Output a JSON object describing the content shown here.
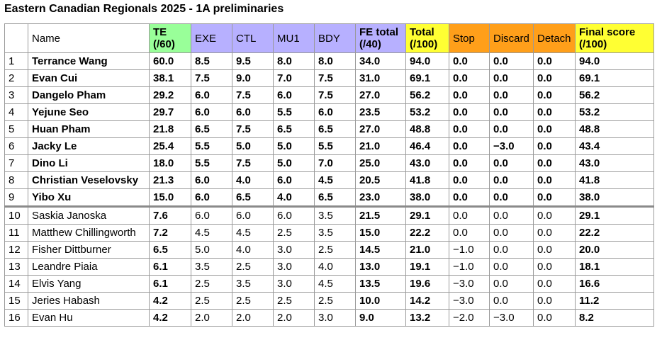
{
  "title": "Eastern Canadian Regionals 2025 - 1A preliminaries",
  "headers": {
    "rank": "",
    "name": "Name",
    "te": "TE (/60)",
    "exe": "EXE",
    "ctl": "CTL",
    "mu1": "MU1",
    "bdy": "BDY",
    "fe_total": "FE total (/40)",
    "total": "Total (/100)",
    "stop": "Stop",
    "discard": "Discard",
    "detach": "Detach",
    "final": "Final score (/100)"
  },
  "header_colors": {
    "te": "#99ff99",
    "judges": "#b7b0ff",
    "totals": "#ffff33",
    "deductions": "#ff9f1a"
  },
  "rows": [
    {
      "rank": "1",
      "name": "Terrance Wang",
      "te": "60.0",
      "exe": "8.5",
      "ctl": "9.5",
      "mu1": "8.0",
      "bdy": "8.0",
      "fe": "34.0",
      "total": "94.0",
      "stop": "0.0",
      "discard": "0.0",
      "detach": "0.0",
      "final": "94.0"
    },
    {
      "rank": "2",
      "name": "Evan Cui",
      "te": "38.1",
      "exe": "7.5",
      "ctl": "9.0",
      "mu1": "7.0",
      "bdy": "7.5",
      "fe": "31.0",
      "total": "69.1",
      "stop": "0.0",
      "discard": "0.0",
      "detach": "0.0",
      "final": "69.1"
    },
    {
      "rank": "3",
      "name": "Dangelo Pham",
      "te": "29.2",
      "exe": "6.0",
      "ctl": "7.5",
      "mu1": "6.0",
      "bdy": "7.5",
      "fe": "27.0",
      "total": "56.2",
      "stop": "0.0",
      "discard": "0.0",
      "detach": "0.0",
      "final": "56.2"
    },
    {
      "rank": "4",
      "name": "Yejune Seo",
      "te": "29.7",
      "exe": "6.0",
      "ctl": "6.0",
      "mu1": "5.5",
      "bdy": "6.0",
      "fe": "23.5",
      "total": "53.2",
      "stop": "0.0",
      "discard": "0.0",
      "detach": "0.0",
      "final": "53.2"
    },
    {
      "rank": "5",
      "name": "Huan Pham",
      "te": "21.8",
      "exe": "6.5",
      "ctl": "7.5",
      "mu1": "6.5",
      "bdy": "6.5",
      "fe": "27.0",
      "total": "48.8",
      "stop": "0.0",
      "discard": "0.0",
      "detach": "0.0",
      "final": "48.8"
    },
    {
      "rank": "6",
      "name": "Jacky Le",
      "te": "25.4",
      "exe": "5.5",
      "ctl": "5.0",
      "mu1": "5.0",
      "bdy": "5.5",
      "fe": "21.0",
      "total": "46.4",
      "stop": "0.0",
      "discard": "−3.0",
      "detach": "0.0",
      "final": "43.4"
    },
    {
      "rank": "7",
      "name": "Dino Li",
      "te": "18.0",
      "exe": "5.5",
      "ctl": "7.5",
      "mu1": "5.0",
      "bdy": "7.0",
      "fe": "25.0",
      "total": "43.0",
      "stop": "0.0",
      "discard": "0.0",
      "detach": "0.0",
      "final": "43.0"
    },
    {
      "rank": "8",
      "name": "Christian Veselovsky",
      "te": "21.3",
      "exe": "6.0",
      "ctl": "4.0",
      "mu1": "6.0",
      "bdy": "4.5",
      "fe": "20.5",
      "total": "41.8",
      "stop": "0.0",
      "discard": "0.0",
      "detach": "0.0",
      "final": "41.8"
    },
    {
      "rank": "9",
      "name": "Yibo Xu",
      "te": "15.0",
      "exe": "6.0",
      "ctl": "6.5",
      "mu1": "4.0",
      "bdy": "6.5",
      "fe": "23.0",
      "total": "38.0",
      "stop": "0.0",
      "discard": "0.0",
      "detach": "0.0",
      "final": "38.0"
    },
    {
      "rank": "10",
      "name": "Saskia Janoska",
      "te": "7.6",
      "exe": "6.0",
      "ctl": "6.0",
      "mu1": "6.0",
      "bdy": "3.5",
      "fe": "21.5",
      "total": "29.1",
      "stop": "0.0",
      "discard": "0.0",
      "detach": "0.0",
      "final": "29.1"
    },
    {
      "rank": "11",
      "name": "Matthew Chillingworth",
      "te": "7.2",
      "exe": "4.5",
      "ctl": "4.5",
      "mu1": "2.5",
      "bdy": "3.5",
      "fe": "15.0",
      "total": "22.2",
      "stop": "0.0",
      "discard": "0.0",
      "detach": "0.0",
      "final": "22.2"
    },
    {
      "rank": "12",
      "name": "Fisher Dittburner",
      "te": "6.5",
      "exe": "5.0",
      "ctl": "4.0",
      "mu1": "3.0",
      "bdy": "2.5",
      "fe": "14.5",
      "total": "21.0",
      "stop": "−1.0",
      "discard": "0.0",
      "detach": "0.0",
      "final": "20.0"
    },
    {
      "rank": "13",
      "name": "Leandre Piaia",
      "te": "6.1",
      "exe": "3.5",
      "ctl": "2.5",
      "mu1": "3.0",
      "bdy": "4.0",
      "fe": "13.0",
      "total": "19.1",
      "stop": "−1.0",
      "discard": "0.0",
      "detach": "0.0",
      "final": "18.1"
    },
    {
      "rank": "14",
      "name": "Elvis Yang",
      "te": "6.1",
      "exe": "2.5",
      "ctl": "3.5",
      "mu1": "3.0",
      "bdy": "4.5",
      "fe": "13.5",
      "total": "19.6",
      "stop": "−3.0",
      "discard": "0.0",
      "detach": "0.0",
      "final": "16.6"
    },
    {
      "rank": "15",
      "name": "Jeries Habash",
      "te": "4.2",
      "exe": "2.5",
      "ctl": "2.5",
      "mu1": "2.5",
      "bdy": "2.5",
      "fe": "10.0",
      "total": "14.2",
      "stop": "−3.0",
      "discard": "0.0",
      "detach": "0.0",
      "final": "11.2"
    },
    {
      "rank": "16",
      "name": "Evan Hu",
      "te": "4.2",
      "exe": "2.0",
      "ctl": "2.0",
      "mu1": "2.0",
      "bdy": "3.0",
      "fe": "9.0",
      "total": "13.2",
      "stop": "−2.0",
      "discard": "−3.0",
      "detach": "0.0",
      "final": "8.2"
    }
  ]
}
